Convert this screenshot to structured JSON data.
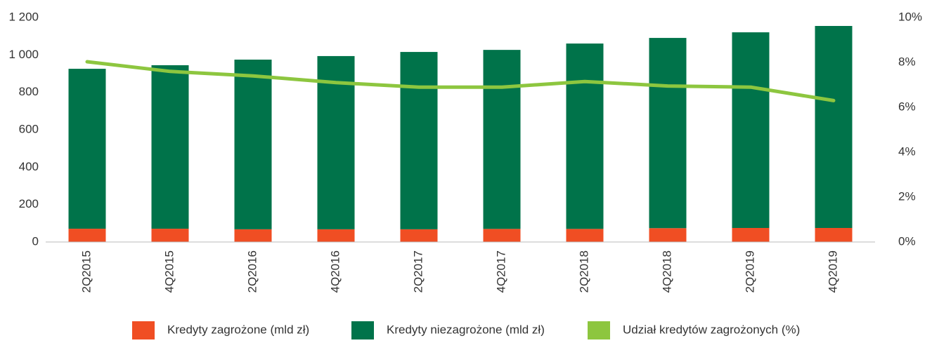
{
  "chart_data": {
    "type": "bar",
    "categories": [
      "2Q2015",
      "4Q2015",
      "2Q2016",
      "4Q2016",
      "2Q2017",
      "4Q2017",
      "2Q2018",
      "4Q2018",
      "2Q2019",
      "4Q2019"
    ],
    "series": [
      {
        "name": "Kredyty zagrożone (mld zł)",
        "color": "#f04e23",
        "type": "bar",
        "values": [
          71,
          71,
          68,
          68,
          68,
          70,
          70,
          74,
          75,
          75
        ]
      },
      {
        "name": "Kredyty niezagrożone (mld zł)",
        "color": "#00734a",
        "type": "bar",
        "values": [
          855,
          874,
          907,
          926,
          948,
          957,
          991,
          1017,
          1046,
          1080
        ]
      },
      {
        "name": "Udział kredytów zagrożonych (%)",
        "color": "#8dc63f",
        "type": "line",
        "axis": "y2",
        "values": [
          8.03,
          7.6,
          7.4,
          7.1,
          6.9,
          6.9,
          7.15,
          6.95,
          6.9,
          6.3
        ]
      }
    ],
    "stacked": true,
    "ylim": [
      0,
      1200
    ],
    "yticks": [
      0,
      200,
      400,
      600,
      800,
      {
        "value": 1000,
        "label": "1 000"
      },
      {
        "value": 1200,
        "label": "1 200"
      }
    ],
    "y2lim": [
      0,
      10
    ],
    "y2ticks": [
      {
        "value": 0,
        "label": "0%"
      },
      {
        "value": 2,
        "label": "2%"
      },
      {
        "value": 4,
        "label": "4%"
      },
      {
        "value": 6,
        "label": "6%"
      },
      {
        "value": 8,
        "label": "8%"
      },
      {
        "value": 10,
        "label": "10%"
      }
    ],
    "legend": "bottom"
  }
}
